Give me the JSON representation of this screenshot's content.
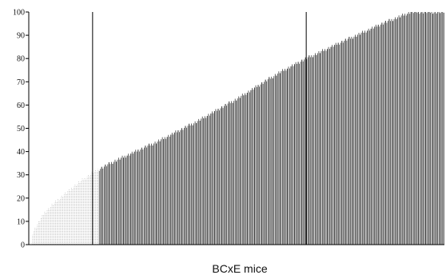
{
  "chart_data": {
    "type": "bar",
    "title": "",
    "xlabel": "BCxE mice",
    "ylabel": "",
    "ylim": [
      0,
      100
    ],
    "yticks": [
      "0",
      "10",
      "20",
      "30",
      "40",
      "50",
      "60",
      "70",
      "80",
      "90",
      "100"
    ],
    "grid": false,
    "legend": "none",
    "bar_count": 340,
    "colors": {
      "bar_light": "#b9b9b9",
      "bar_dark": "#444444",
      "axis": "#000000",
      "marker": "#000000"
    },
    "reference_markers": [
      {
        "at_bar_fraction": 0.147,
        "value": 100
      },
      {
        "at_bar_fraction": 0.665,
        "value": 100
      }
    ],
    "sorted_profile": [
      {
        "rank_fraction": 0.0,
        "value": 5
      },
      {
        "rank_fraction": 0.03,
        "value": 14
      },
      {
        "rank_fraction": 0.06,
        "value": 19
      },
      {
        "rank_fraction": 0.1,
        "value": 25
      },
      {
        "rank_fraction": 0.147,
        "value": 31
      },
      {
        "rank_fraction": 0.2,
        "value": 36
      },
      {
        "rank_fraction": 0.3,
        "value": 44
      },
      {
        "rank_fraction": 0.4,
        "value": 53
      },
      {
        "rank_fraction": 0.5,
        "value": 63
      },
      {
        "rank_fraction": 0.6,
        "value": 74
      },
      {
        "rank_fraction": 0.665,
        "value": 80
      },
      {
        "rank_fraction": 0.75,
        "value": 87
      },
      {
        "rank_fraction": 0.85,
        "value": 95
      },
      {
        "rank_fraction": 0.92,
        "value": 100
      },
      {
        "rank_fraction": 1.0,
        "value": 100
      }
    ]
  }
}
